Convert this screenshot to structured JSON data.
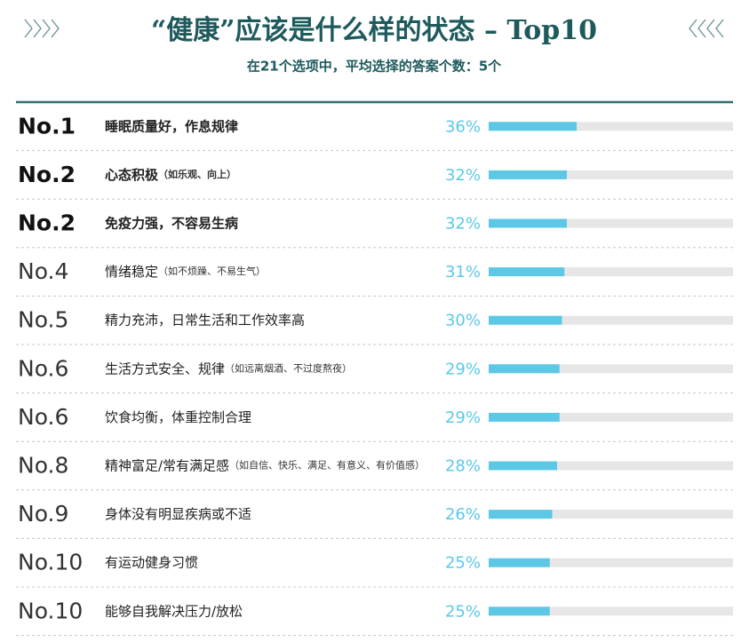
{
  "chart_data": {
    "type": "bar",
    "title": "“健康”应该是什么样的状态 – Top10",
    "subtitle": "在21个选项中，平均选择的答案个数：5个",
    "ranks": [
      "No.1",
      "No.2",
      "No.2",
      "No.4",
      "No.5",
      "No.6",
      "No.6",
      "No.8",
      "No.9",
      "No.10",
      "No.10"
    ],
    "categories": [
      "睡眠质量好，作息规律",
      "心态积极",
      "免疫力强，不容易生病",
      "情绪稳定",
      "精力充沛，日常生活和工作效率高",
      "生活方式安全、规律",
      "饮食均衡，体重控制合理",
      "精神富足/常有满足感",
      "身体没有明显疾病或不适",
      "有运动健身习惯",
      "能够自我解决压力/放松"
    ],
    "category_notes": [
      null,
      "（如乐观、向上）",
      null,
      "（如不烦躁、不易生气）",
      null,
      "（如远离烟酒、不过度熬夜）",
      null,
      "（如自信、快乐、满足、有意义、有价值感）",
      null,
      null,
      null
    ],
    "values": [
      36,
      32,
      32,
      31,
      30,
      29,
      29,
      28,
      26,
      25,
      25
    ],
    "value_labels": [
      "36%",
      "32%",
      "32%",
      "31%",
      "30%",
      "29%",
      "29%",
      "28%",
      "26%",
      "25%",
      "25%"
    ],
    "color": "#5cc8e6",
    "track_color": "#e6e6e6",
    "xlim": [
      0,
      100
    ]
  }
}
